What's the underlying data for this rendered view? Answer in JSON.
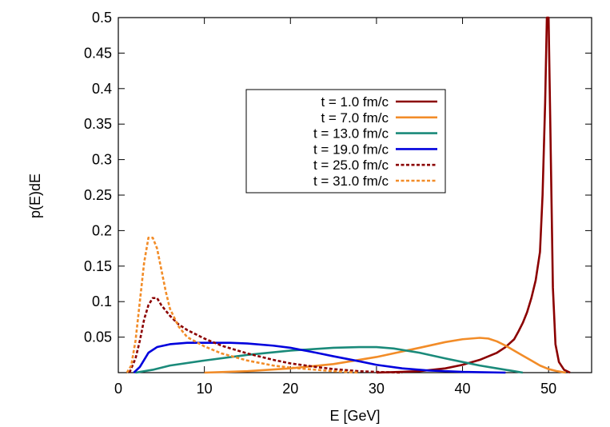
{
  "chart_data": {
    "type": "line",
    "title": "",
    "xlabel": "E [GeV]",
    "ylabel": "p(E)dE",
    "xlim": [
      0,
      55
    ],
    "ylim": [
      0,
      0.5
    ],
    "xticks": [
      0,
      10,
      20,
      30,
      40,
      50
    ],
    "yticks": [
      0.05,
      0.1,
      0.15,
      0.2,
      0.25,
      0.3,
      0.35,
      0.4,
      0.45,
      0.5
    ],
    "ytick_labels": [
      "0.05",
      "0.1",
      "0.15",
      "0.2",
      "0.25",
      "0.3",
      "0.35",
      "0.4",
      "0.45",
      "0.5"
    ],
    "xtick_labels": [
      "0",
      "10",
      "20",
      "30",
      "40",
      "50"
    ],
    "grid": false,
    "legend_position": "upper center",
    "series": [
      {
        "name": "t = 1.0 fm/c",
        "color": "#8b0000",
        "dash": "solid",
        "points": [
          [
            30,
            0
          ],
          [
            35,
            0.002
          ],
          [
            38,
            0.006
          ],
          [
            40,
            0.011
          ],
          [
            42,
            0.018
          ],
          [
            44,
            0.028
          ],
          [
            45,
            0.036
          ],
          [
            46,
            0.047
          ],
          [
            46.5,
            0.058
          ],
          [
            47,
            0.07
          ],
          [
            47.5,
            0.085
          ],
          [
            48,
            0.105
          ],
          [
            48.5,
            0.13
          ],
          [
            49,
            0.17
          ],
          [
            49.3,
            0.25
          ],
          [
            49.6,
            0.38
          ],
          [
            49.8,
            0.5
          ],
          [
            50,
            0.5
          ],
          [
            50.2,
            0.35
          ],
          [
            50.5,
            0.12
          ],
          [
            50.8,
            0.04
          ],
          [
            51.2,
            0.015
          ],
          [
            51.8,
            0.004
          ],
          [
            52.5,
            0
          ]
        ]
      },
      {
        "name": "t = 7.0 fm/c",
        "color": "#f28c28",
        "dash": "solid",
        "points": [
          [
            10,
            0
          ],
          [
            15,
            0.002
          ],
          [
            20,
            0.006
          ],
          [
            25,
            0.012
          ],
          [
            30,
            0.022
          ],
          [
            35,
            0.035
          ],
          [
            38,
            0.043
          ],
          [
            40,
            0.047
          ],
          [
            42,
            0.049
          ],
          [
            43,
            0.048
          ],
          [
            44,
            0.044
          ],
          [
            45,
            0.038
          ],
          [
            46,
            0.031
          ],
          [
            47,
            0.024
          ],
          [
            48,
            0.017
          ],
          [
            49,
            0.01
          ],
          [
            50,
            0.005
          ],
          [
            51,
            0.002
          ],
          [
            52,
            0
          ]
        ]
      },
      {
        "name": "t = 13.0 fm/c",
        "color": "#1a8a7a",
        "dash": "solid",
        "points": [
          [
            2,
            0
          ],
          [
            4,
            0.004
          ],
          [
            6,
            0.01
          ],
          [
            10,
            0.017
          ],
          [
            15,
            0.025
          ],
          [
            20,
            0.031
          ],
          [
            25,
            0.035
          ],
          [
            28,
            0.036
          ],
          [
            30,
            0.036
          ],
          [
            32,
            0.034
          ],
          [
            35,
            0.028
          ],
          [
            38,
            0.02
          ],
          [
            40,
            0.015
          ],
          [
            42,
            0.01
          ],
          [
            44,
            0.006
          ],
          [
            46,
            0.002
          ],
          [
            47,
            0
          ]
        ]
      },
      {
        "name": "t = 19.0 fm/c",
        "color": "#0000dd",
        "dash": "solid",
        "points": [
          [
            1.8,
            0
          ],
          [
            2.5,
            0.008
          ],
          [
            3,
            0.018
          ],
          [
            3.5,
            0.028
          ],
          [
            4.5,
            0.036
          ],
          [
            6,
            0.04
          ],
          [
            8,
            0.042
          ],
          [
            10,
            0.042
          ],
          [
            13,
            0.042
          ],
          [
            15,
            0.041
          ],
          [
            18,
            0.038
          ],
          [
            20,
            0.035
          ],
          [
            23,
            0.028
          ],
          [
            25,
            0.023
          ],
          [
            28,
            0.016
          ],
          [
            30,
            0.011
          ],
          [
            33,
            0.006
          ],
          [
            36,
            0.003
          ],
          [
            40,
            0.001
          ],
          [
            45,
            0
          ]
        ]
      },
      {
        "name": "t = 25.0 fm/c",
        "color": "#8b0000",
        "dash": "dashed",
        "points": [
          [
            1.3,
            0
          ],
          [
            2,
            0.02
          ],
          [
            2.5,
            0.045
          ],
          [
            3,
            0.075
          ],
          [
            3.5,
            0.095
          ],
          [
            4,
            0.105
          ],
          [
            4.5,
            0.105
          ],
          [
            5,
            0.095
          ],
          [
            6,
            0.08
          ],
          [
            7,
            0.068
          ],
          [
            8,
            0.06
          ],
          [
            10,
            0.048
          ],
          [
            12,
            0.038
          ],
          [
            15,
            0.027
          ],
          [
            18,
            0.018
          ],
          [
            20,
            0.013
          ],
          [
            23,
            0.008
          ],
          [
            25,
            0.005
          ],
          [
            28,
            0.002
          ],
          [
            30,
            0.001
          ],
          [
            33,
            0
          ]
        ]
      },
      {
        "name": "t = 31.0 fm/c",
        "color": "#f28c28",
        "dash": "dashed",
        "points": [
          [
            1,
            0
          ],
          [
            1.5,
            0.01
          ],
          [
            2,
            0.045
          ],
          [
            2.5,
            0.1
          ],
          [
            3,
            0.155
          ],
          [
            3.5,
            0.19
          ],
          [
            4,
            0.19
          ],
          [
            4.5,
            0.175
          ],
          [
            5,
            0.145
          ],
          [
            5.5,
            0.115
          ],
          [
            6,
            0.09
          ],
          [
            7,
            0.065
          ],
          [
            8,
            0.05
          ],
          [
            10,
            0.037
          ],
          [
            12,
            0.027
          ],
          [
            15,
            0.017
          ],
          [
            18,
            0.01
          ],
          [
            20,
            0.007
          ],
          [
            25,
            0.002
          ],
          [
            28,
            0
          ]
        ]
      }
    ]
  }
}
